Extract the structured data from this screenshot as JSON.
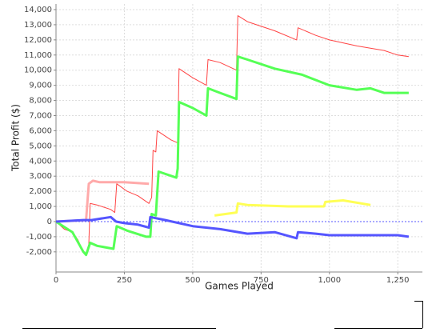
{
  "chart_data": {
    "type": "line",
    "x_label": "Games Played",
    "y_label": "Total Profit ($)",
    "xlim": [
      0,
      1340
    ],
    "ylim": [
      -3330,
      14370
    ],
    "xticks": [
      0,
      250,
      500,
      750,
      {
        "value": 1000,
        "label": "1,000"
      },
      {
        "value": 1250,
        "label": "1,250"
      }
    ],
    "yticks": [
      {
        "value": -2000,
        "label": "-2,000"
      },
      {
        "value": -1000,
        "label": "-1,000"
      },
      0,
      {
        "value": 1000,
        "label": "1,000"
      },
      {
        "value": 2000,
        "label": "2,000"
      },
      {
        "value": 3000,
        "label": "3,000"
      },
      {
        "value": 4000,
        "label": "4,000"
      },
      {
        "value": 5000,
        "label": "5,000"
      },
      {
        "value": 6000,
        "label": "6,000"
      },
      {
        "value": 7000,
        "label": "7,000"
      },
      {
        "value": 8000,
        "label": "8,000"
      },
      {
        "value": 9000,
        "label": "9,000"
      },
      {
        "value": 10000,
        "label": "10,000"
      },
      {
        "value": 11000,
        "label": "11,000"
      },
      {
        "value": 12000,
        "label": "12,000"
      },
      {
        "value": 13000,
        "label": "13,000"
      },
      {
        "value": 14000,
        "label": "14,000"
      }
    ],
    "grid": true,
    "reference_line": 0,
    "reference_color": "#5555ff",
    "series": [
      {
        "color": "#ff4444",
        "line_width": 1,
        "x": [
          0,
          30,
          60,
          80,
          100,
          110,
          120,
          125,
          150,
          200,
          215,
          222,
          260,
          300,
          340,
          350,
          355,
          365,
          370,
          420,
          445,
          450,
          500,
          550,
          556,
          600,
          660,
          665,
          700,
          800,
          880,
          885,
          950,
          1000,
          1100,
          1200,
          1250,
          1290
        ],
        "values": [
          0,
          -500,
          -700,
          -1200,
          -2000,
          -2100,
          -1500,
          1200,
          1100,
          800,
          600,
          2500,
          2000,
          1700,
          1200,
          1600,
          4700,
          4600,
          6000,
          5400,
          5200,
          10100,
          9500,
          9000,
          10700,
          10500,
          10000,
          13600,
          13200,
          12600,
          12000,
          12800,
          12300,
          12000,
          11600,
          11300,
          11000,
          10900
        ]
      },
      {
        "color": "#55ff55",
        "line_width": 3,
        "x": [
          0,
          60,
          100,
          110,
          125,
          150,
          210,
          222,
          260,
          330,
          345,
          350,
          365,
          375,
          440,
          445,
          450,
          500,
          550,
          556,
          600,
          660,
          665,
          700,
          800,
          900,
          1000,
          1100,
          1150,
          1200,
          1290
        ],
        "values": [
          0,
          -700,
          -2000,
          -2200,
          -1400,
          -1600,
          -1800,
          -300,
          -600,
          -1000,
          -1000,
          500,
          400,
          3300,
          2900,
          3500,
          7900,
          7500,
          7000,
          8800,
          8500,
          8100,
          10900,
          10700,
          10100,
          9700,
          9000,
          8700,
          8800,
          8500,
          8500
        ]
      },
      {
        "color": "#ffaaaa",
        "line_width": 3,
        "x": [
          0,
          110,
          120,
          135,
          160,
          250,
          340
        ],
        "values": [
          0,
          100,
          2500,
          2700,
          2600,
          2600,
          2500
        ]
      },
      {
        "color": "#ffff55",
        "line_width": 3,
        "x": [
          580,
          660,
          665,
          700,
          850,
          980,
          985,
          1050,
          1150
        ],
        "values": [
          400,
          600,
          1200,
          1100,
          1000,
          1000,
          1300,
          1400,
          1100
        ]
      },
      {
        "color": "#5555ff",
        "line_width": 3,
        "x": [
          0,
          100,
          130,
          200,
          220,
          250,
          300,
          340,
          345,
          400,
          500,
          600,
          700,
          800,
          880,
          885,
          950,
          1000,
          1100,
          1250,
          1290
        ],
        "values": [
          0,
          100,
          100,
          300,
          0,
          -100,
          -200,
          -400,
          300,
          100,
          -300,
          -500,
          -800,
          -700,
          -1100,
          -700,
          -800,
          -900,
          -900,
          -900,
          -1000
        ]
      }
    ]
  }
}
